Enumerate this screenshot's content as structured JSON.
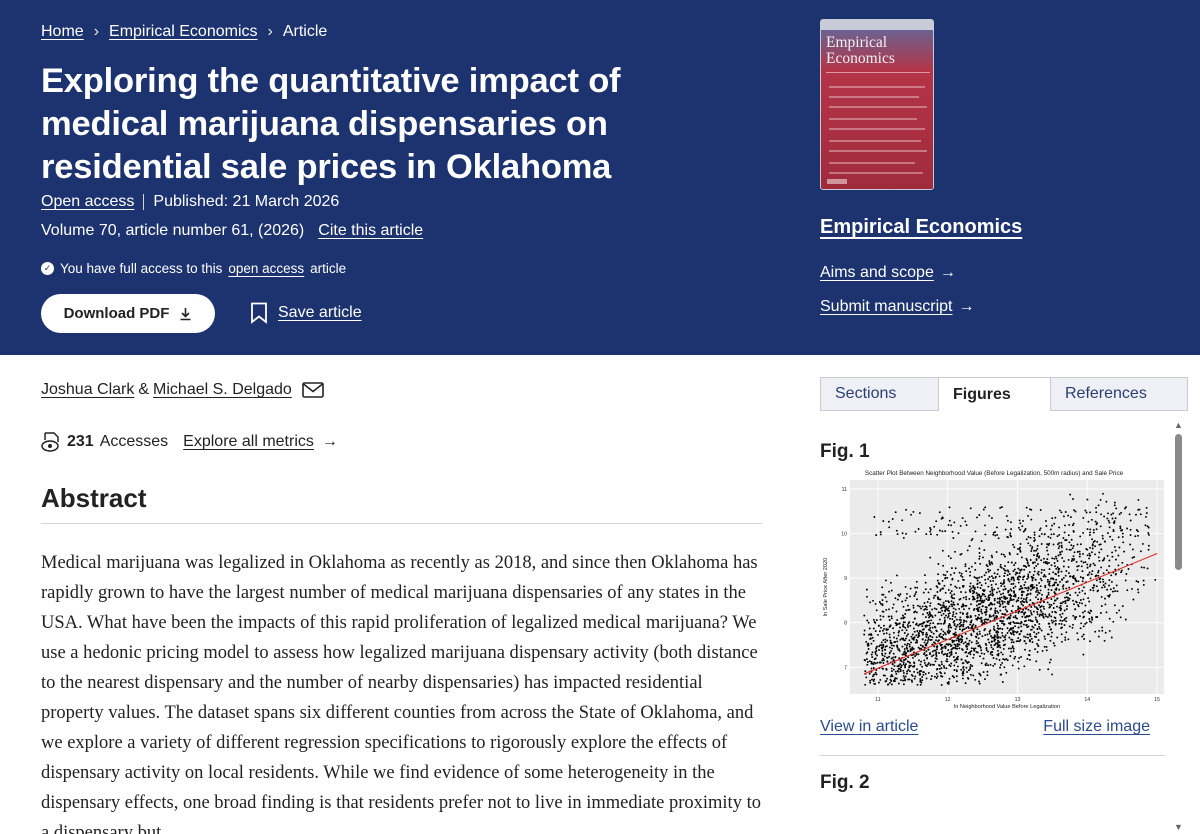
{
  "breadcrumb": {
    "home": "Home",
    "journal": "Empirical Economics",
    "current": "Article",
    "sep": "›"
  },
  "article": {
    "title": "Exploring the quantitative impact of medical marijuana dispensaries on residential sale prices in Oklahoma",
    "open_access": "Open access",
    "published": "Published: 21 March 2026",
    "volume": "Volume 70, article number 61, (2026)",
    "cite": "Cite this article",
    "access_pre": "You have full access to this",
    "access_link": "open access",
    "access_post": "article",
    "download": "Download PDF",
    "save": "Save article"
  },
  "journal_box": {
    "cover_title": "Empirical Economics",
    "name": "Empirical Economics",
    "aims": "Aims and scope",
    "submit": "Submit manuscript",
    "arrow": "→"
  },
  "authors": {
    "a1": "Joshua Clark",
    "amp": "&",
    "a2": "Michael S. Delgado"
  },
  "metrics": {
    "count": "231",
    "label": "Accesses",
    "explore": "Explore all metrics",
    "arrow": "→"
  },
  "abstract": {
    "heading": "Abstract",
    "text": "Medical marijuana was legalized in Oklahoma as recently as 2018, and since then Oklahoma has rapidly grown to have the largest number of medical marijuana dispensaries of any states in the USA. What have been the impacts of this rapid proliferation of legalized medical marijuana? We use a hedonic pricing model to assess how legalized marijuana dispensary activity (both distance to the nearest dispensary and the number of nearby dispensaries) has impacted residential property values. The dataset spans six different counties from across the State of Oklahoma, and we explore a variety of different regression specifications to rigorously explore the effects of dispensary activity on local residents. While we find evidence of some heterogeneity in the dispensary effects, one broad finding is that residents prefer not to live in immediate proximity to a dispensary but"
  },
  "side_tabs": {
    "sections": "Sections",
    "figures": "Figures",
    "references": "References"
  },
  "figures": {
    "fig1": "Fig. 1",
    "fig2": "Fig. 2",
    "view": "View in article",
    "full": "Full size image"
  },
  "chart_data": {
    "type": "scatter",
    "title": "Scatter Plot Between Neighborhood Value (Before Legalization, 500m radius) and Sale Price",
    "xlabel": "ln Neighborhood Value Before Legalization",
    "ylabel": "ln Sale Price After 2020",
    "xlim": [
      10.6,
      15.1
    ],
    "ylim": [
      6.4,
      11.2
    ],
    "xticks": [
      11,
      12,
      13,
      14,
      15
    ],
    "yticks": [
      7,
      8,
      9,
      10,
      11
    ],
    "fit_line": {
      "x": [
        10.8,
        15.0
      ],
      "y": [
        6.85,
        9.55
      ],
      "color": "#e0302a"
    },
    "grid": true,
    "series_note": "dense point cloud approximating the printed scatter"
  },
  "colors": {
    "header_bg": "#1c3370",
    "link": "#2a4b8d",
    "fit": "#e0302a"
  }
}
